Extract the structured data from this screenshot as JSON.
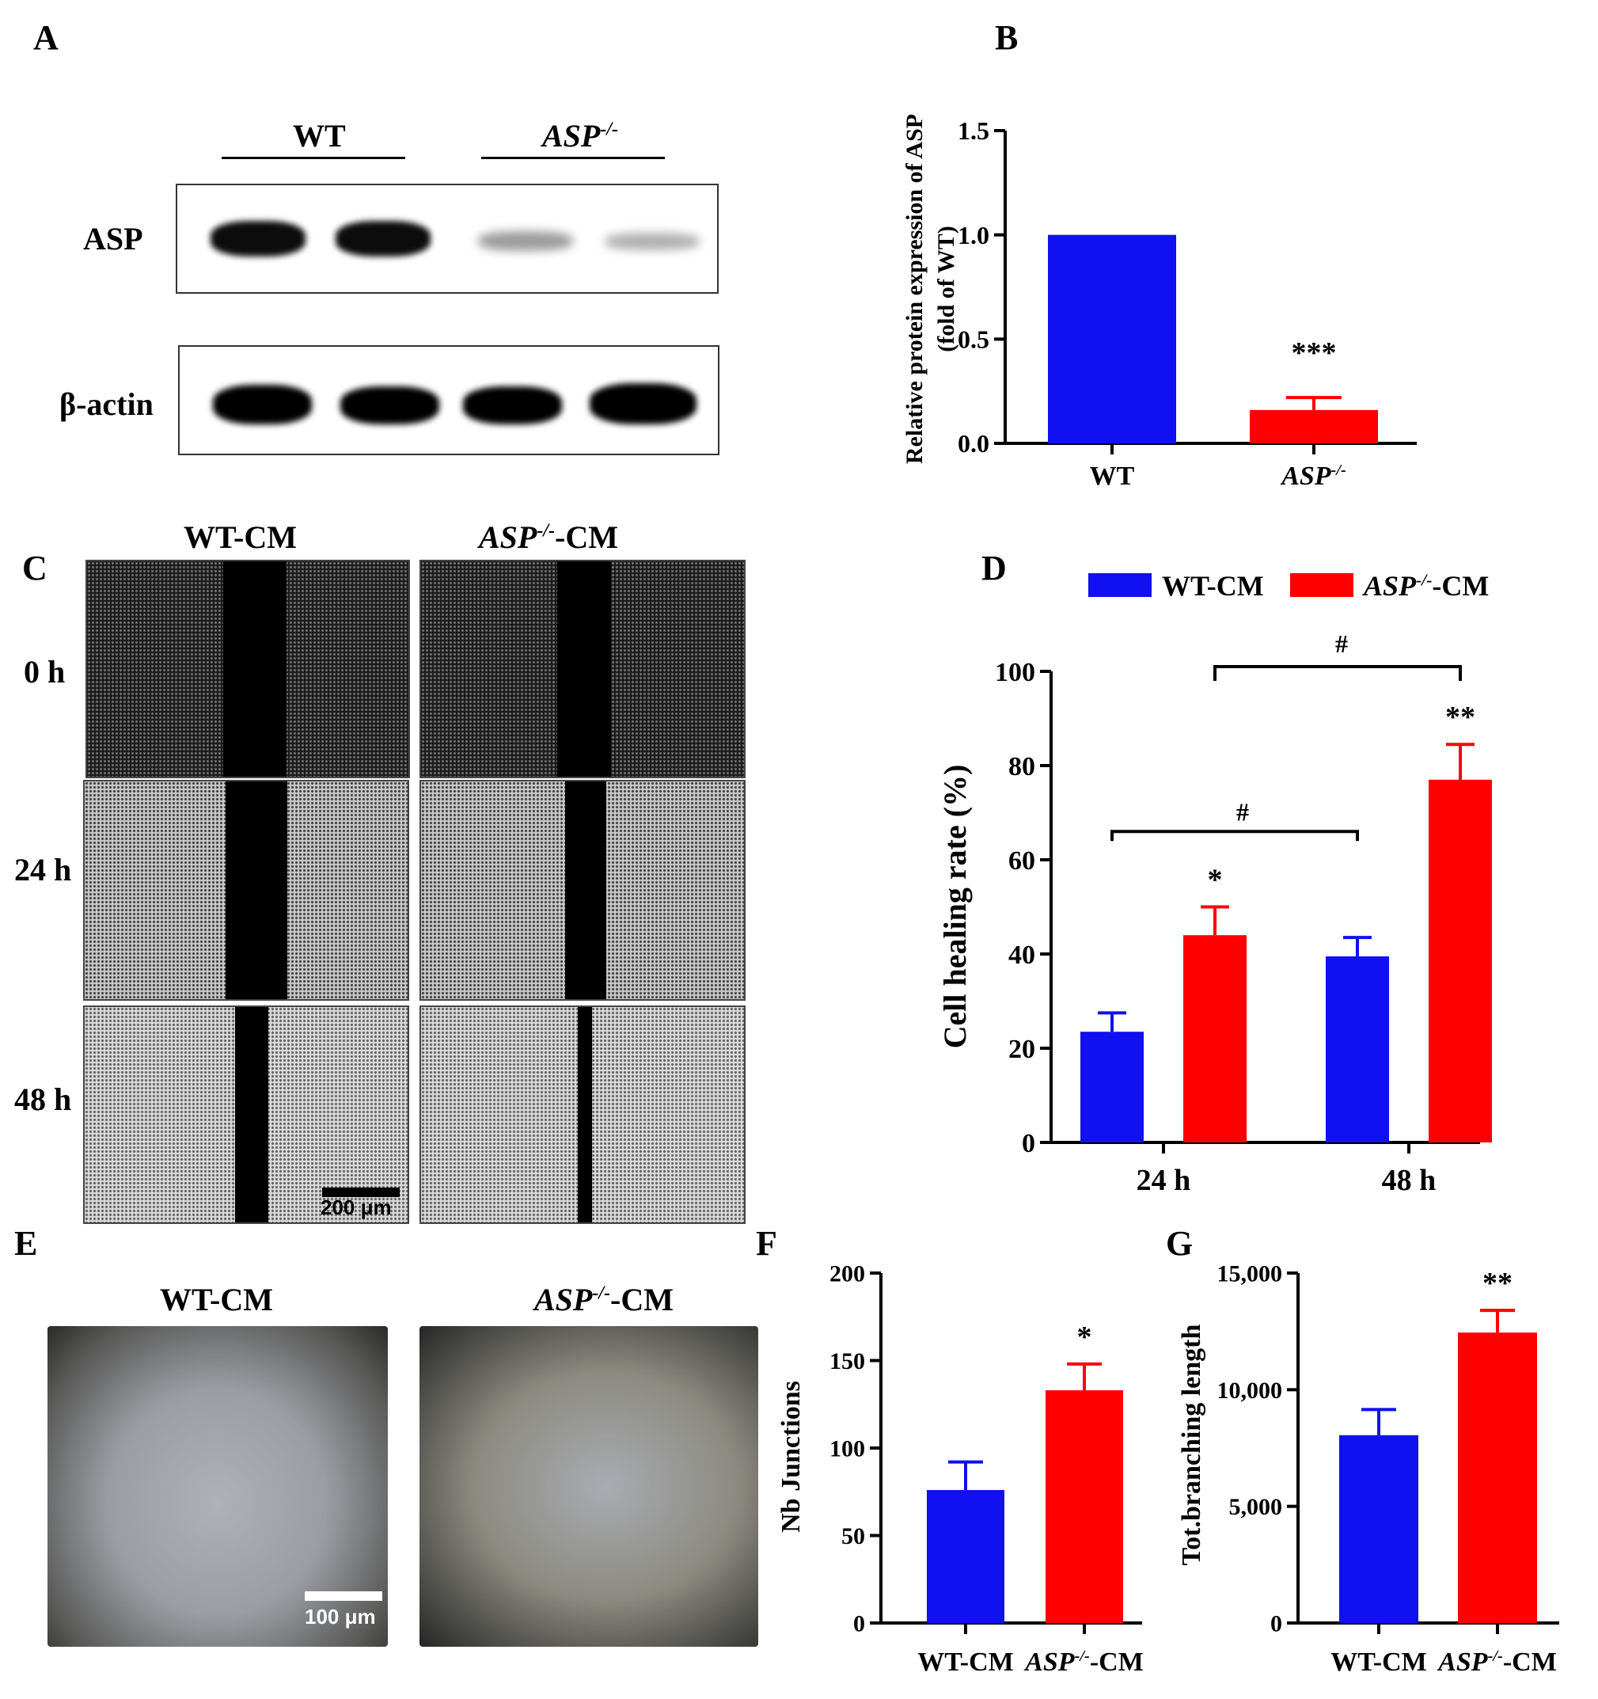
{
  "panels": {
    "a": {
      "letter": "A",
      "wt_label": "WT",
      "asp_label": "ASP",
      "asp_sup": "-/-",
      "row_asp": "ASP",
      "row_actin": "β-actin"
    },
    "b": {
      "letter": "B"
    },
    "c": {
      "letter": "C",
      "col_wt": "WT-CM",
      "col_asp": "ASP",
      "col_asp_sup": "-/-",
      "col_asp_suffix": "-CM",
      "rows": [
        "0 h",
        "24 h",
        "48 h"
      ],
      "scale_label": "200 μm"
    },
    "d": {
      "letter": "D"
    },
    "e": {
      "letter": "E",
      "col_wt": "WT-CM",
      "col_asp": "ASP",
      "col_asp_sup": "-/-",
      "col_asp_suffix": "-CM",
      "scale_label": "100 μm"
    },
    "f": {
      "letter": "F"
    },
    "g": {
      "letter": "G"
    }
  },
  "colors": {
    "blue": "#1010f0",
    "red": "#ff0000"
  },
  "chart_data": [
    {
      "id": "B",
      "type": "bar",
      "categories": [
        "WT",
        "ASP-/-"
      ],
      "values": [
        1.0,
        0.16
      ],
      "errors": [
        0,
        0.06
      ],
      "colors": [
        "#1010f0",
        "#ff0000"
      ],
      "ylabel_line1": "Relative protein expression of ASP",
      "ylabel_line2": "(fold of WT)",
      "ylim": [
        0,
        1.5
      ],
      "yticks": [
        "0.0",
        "0.5",
        "1.0",
        "1.5"
      ],
      "annotations": [
        "",
        "***"
      ]
    },
    {
      "id": "D",
      "type": "bar",
      "categories": [
        "24 h",
        "48 h"
      ],
      "series": [
        {
          "name": "WT-CM",
          "values": [
            23.5,
            39.5
          ],
          "errors": [
            4,
            4
          ]
        },
        {
          "name": "ASP-/--CM",
          "values": [
            44,
            77
          ],
          "errors": [
            6,
            7.5
          ]
        }
      ],
      "ylabel": "Cell healing rate (%)",
      "ylim": [
        0,
        100
      ],
      "yticks": [
        "0",
        "20",
        "40",
        "60",
        "80",
        "100"
      ],
      "legend": "top",
      "annotations": [
        "*",
        "**"
      ],
      "brackets": [
        "#",
        "#"
      ]
    },
    {
      "id": "F",
      "type": "bar",
      "categories": [
        "WT-CM",
        "ASP-/--CM"
      ],
      "values": [
        76,
        133
      ],
      "errors": [
        16,
        15
      ],
      "colors": [
        "#1010f0",
        "#ff0000"
      ],
      "ylabel": "Nb Junctions",
      "ylim": [
        0,
        200
      ],
      "yticks": [
        "0",
        "50",
        "100",
        "150",
        "200"
      ],
      "annotations": [
        "",
        "*"
      ]
    },
    {
      "id": "G",
      "type": "bar",
      "categories": [
        "WT-CM",
        "ASP-/--CM"
      ],
      "values": [
        8050,
        12450
      ],
      "errors": [
        1100,
        950
      ],
      "colors": [
        "#1010f0",
        "#ff0000"
      ],
      "ylabel": "Tot.branching length",
      "ylim": [
        0,
        15000
      ],
      "yticks": [
        "0",
        "5,000",
        "10,000",
        "15,000"
      ],
      "annotations": [
        "",
        "**"
      ]
    }
  ]
}
